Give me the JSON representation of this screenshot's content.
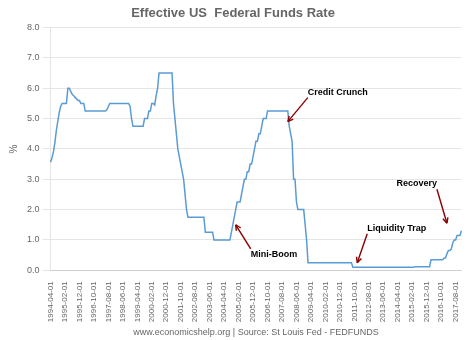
{
  "chart_data": {
    "type": "line",
    "title": "Effective US  Federal Funds Rate",
    "xlabel": "www.economicshelp.org | Source: St Louis Fed - FEDFUNDS",
    "ylabel": "%",
    "color": "#5b9bd5",
    "grid": "y",
    "ylim": [
      0.0,
      8.0
    ],
    "yticks": [
      {
        "value": 0.0,
        "label": "0.0"
      },
      {
        "value": 1.0,
        "label": "1.0"
      },
      {
        "value": 2.0,
        "label": "2.0"
      },
      {
        "value": 3.0,
        "label": "3.0"
      },
      {
        "value": 4.0,
        "label": "4.0"
      },
      {
        "value": 5.0,
        "label": "5.0"
      },
      {
        "value": 6.0,
        "label": "6.0"
      },
      {
        "value": 7.0,
        "label": "7.0"
      },
      {
        "value": 8.0,
        "label": "8.0"
      }
    ],
    "categories": [
      "1994-04-01",
      null,
      null,
      null,
      null,
      null,
      null,
      null,
      null,
      null,
      "1995-02-01",
      null,
      null,
      null,
      null,
      null,
      null,
      null,
      null,
      null,
      "1995-12-01",
      null,
      null,
      null,
      null,
      null,
      null,
      null,
      null,
      null,
      "1996-10-01",
      null,
      null,
      null,
      null,
      null,
      null,
      null,
      null,
      null,
      "1997-08-01",
      null,
      null,
      null,
      null,
      null,
      null,
      null,
      null,
      null,
      "1998-06-01",
      null,
      null,
      null,
      null,
      null,
      null,
      null,
      null,
      null,
      "1999-04-01",
      null,
      null,
      null,
      null,
      null,
      null,
      null,
      null,
      null,
      "2000-02-01",
      null,
      null,
      null,
      null,
      null,
      null,
      null,
      null,
      null,
      "2000-12-01",
      null,
      null,
      null,
      null,
      null,
      null,
      null,
      null,
      null,
      "2001-10-01",
      null,
      null,
      null,
      null,
      null,
      null,
      null,
      null,
      null,
      "2002-08-01",
      null,
      null,
      null,
      null,
      null,
      null,
      null,
      null,
      null,
      "2003-06-01",
      null,
      null,
      null,
      null,
      null,
      null,
      null,
      null,
      null,
      "2004-04-01",
      null,
      null,
      null,
      null,
      null,
      null,
      null,
      null,
      null,
      "2005-02-01",
      null,
      null,
      null,
      null,
      null,
      null,
      null,
      null,
      null,
      "2005-12-01",
      null,
      null,
      null,
      null,
      null,
      null,
      null,
      null,
      null,
      "2006-10-01",
      null,
      null,
      null,
      null,
      null,
      null,
      null,
      null,
      null,
      "2007-08-01",
      null,
      null,
      null,
      null,
      null,
      null,
      null,
      null,
      null,
      "2008-06-01",
      null,
      null,
      null,
      null,
      null,
      null,
      null,
      null,
      null,
      "2009-04-01",
      null,
      null,
      null,
      null,
      null,
      null,
      null,
      null,
      null,
      "2010-02-01",
      null,
      null,
      null,
      null,
      null,
      null,
      null,
      null,
      null,
      "2010-12-01",
      null,
      null,
      null,
      null,
      null,
      null,
      null,
      null,
      null,
      "2011-10-01",
      null,
      null,
      null,
      null,
      null,
      null,
      null,
      null,
      null,
      "2012-08-01",
      null,
      null,
      null,
      null,
      null,
      null,
      null,
      null,
      null,
      "2013-06-01",
      null,
      null,
      null,
      null,
      null,
      null,
      null,
      null,
      null,
      "2014-04-01",
      null,
      null,
      null,
      null,
      null,
      null,
      null,
      null,
      null,
      "2015-02-01",
      null,
      null,
      null,
      null,
      null,
      null,
      null,
      null,
      null,
      "2015-12-01",
      null,
      null,
      null,
      null,
      null,
      null,
      null,
      null,
      null,
      "2016-10-01",
      null,
      null,
      null,
      null,
      null,
      null,
      null,
      null,
      null,
      "2017-08-01",
      null,
      null,
      null,
      null
    ],
    "values": [
      3.56,
      3.7,
      3.9,
      4.2,
      4.6,
      4.9,
      5.2,
      5.4,
      5.5,
      5.5,
      5.5,
      5.5,
      6.0,
      6.0,
      5.9,
      5.8,
      5.75,
      5.7,
      5.65,
      5.6,
      5.6,
      5.5,
      5.5,
      5.5,
      5.25,
      5.25,
      5.25,
      5.25,
      5.25,
      5.25,
      5.25,
      5.25,
      5.25,
      5.25,
      5.25,
      5.25,
      5.25,
      5.25,
      5.25,
      5.3,
      5.4,
      5.5,
      5.5,
      5.5,
      5.5,
      5.5,
      5.5,
      5.5,
      5.5,
      5.5,
      5.5,
      5.5,
      5.5,
      5.5,
      5.5,
      5.4,
      5.0,
      4.75,
      4.75,
      4.75,
      4.75,
      4.75,
      4.75,
      4.75,
      4.75,
      5.0,
      5.0,
      5.0,
      5.25,
      5.25,
      5.5,
      5.5,
      5.45,
      5.75,
      6.0,
      6.5,
      6.5,
      6.5,
      6.5,
      6.5,
      6.5,
      6.5,
      6.5,
      6.5,
      6.5,
      5.5,
      5.0,
      4.5,
      4.0,
      3.75,
      3.5,
      3.25,
      3.0,
      2.5,
      2.0,
      1.75,
      1.75,
      1.75,
      1.75,
      1.75,
      1.75,
      1.75,
      1.75,
      1.75,
      1.75,
      1.75,
      1.75,
      1.25,
      1.25,
      1.25,
      1.25,
      1.25,
      1.25,
      1.0,
      1.0,
      1.0,
      1.0,
      1.0,
      1.0,
      1.0,
      1.0,
      1.0,
      1.0,
      1.0,
      1.0,
      1.25,
      1.5,
      1.75,
      2.0,
      2.25,
      2.25,
      2.25,
      2.5,
      2.75,
      3.0,
      3.0,
      3.25,
      3.25,
      3.5,
      3.5,
      3.75,
      4.0,
      4.25,
      4.25,
      4.5,
      4.5,
      4.75,
      5.0,
      5.0,
      5.0,
      5.25,
      5.25,
      5.25,
      5.25,
      5.25,
      5.25,
      5.25,
      5.25,
      5.25,
      5.25,
      5.25,
      5.25,
      5.25,
      5.25,
      5.25,
      4.75,
      4.5,
      4.25,
      3.0,
      3.0,
      2.25,
      2.0,
      2.0,
      2.0,
      2.0,
      2.0,
      1.5,
      1.0,
      0.25,
      0.25,
      0.25,
      0.25,
      0.25,
      0.25,
      0.25,
      0.25,
      0.25,
      0.25,
      0.25,
      0.25,
      0.25,
      0.25,
      0.25,
      0.25,
      0.25,
      0.25,
      0.25,
      0.25,
      0.25,
      0.25,
      0.25,
      0.25,
      0.25,
      0.25,
      0.25,
      0.25,
      0.25,
      0.25,
      0.25,
      0.1,
      0.1,
      0.1,
      0.1,
      0.1,
      0.1,
      0.1,
      0.1,
      0.1,
      0.1,
      0.1,
      0.1,
      0.1,
      0.1,
      0.1,
      0.1,
      0.1,
      0.1,
      0.1,
      0.1,
      0.1,
      0.1,
      0.1,
      0.1,
      0.1,
      0.1,
      0.1,
      0.1,
      0.1,
      0.1,
      0.1,
      0.1,
      0.1,
      0.1,
      0.1,
      0.1,
      0.1,
      0.1,
      0.1,
      0.1,
      0.1,
      0.1,
      0.1,
      0.12,
      0.12,
      0.12,
      0.12,
      0.12,
      0.12,
      0.12,
      0.12,
      0.12,
      0.12,
      0.12,
      0.35,
      0.35,
      0.35,
      0.35,
      0.35,
      0.35,
      0.35,
      0.35,
      0.35,
      0.4,
      0.41,
      0.54,
      0.65,
      0.65,
      0.7,
      0.9,
      1.0,
      1.0,
      1.15,
      1.15,
      1.15,
      1.3
    ],
    "annotations": [
      {
        "text": "Credit Crunch",
        "x": 164,
        "y": 4.9,
        "color": "#8b0000"
      },
      {
        "text": "Mini-Boom",
        "x": 128,
        "y": 1.5,
        "color": "#8b0000"
      },
      {
        "text": "Liquidity Trap",
        "x": 212,
        "y": 0.25,
        "color": "#8b0000"
      },
      {
        "text": "Recovery",
        "x": 274,
        "y": 1.55,
        "color": "#8b0000"
      }
    ]
  }
}
